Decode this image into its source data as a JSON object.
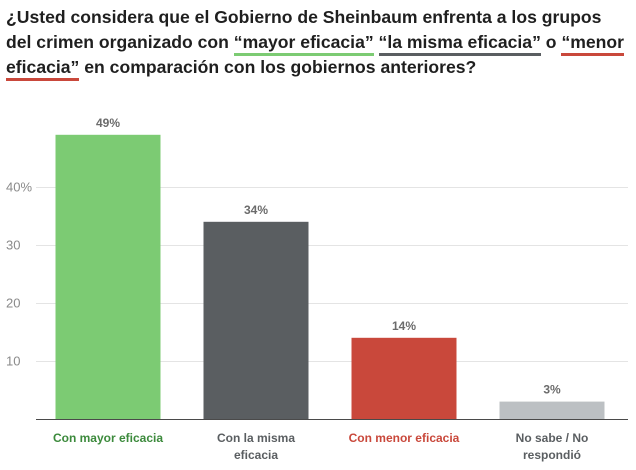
{
  "title": {
    "p1": "¿Usted considera que el Gobierno de Sheinbaum enfrenta a los grupos del crimen organizado con ",
    "h1": "“mayor eficacia”",
    "p2": " ",
    "h2": "“la misma eficacia”",
    "p3": " o ",
    "h3": "“menor eficacia”",
    "p4": " en comparación con los gobiernos anteriores?"
  },
  "colors": {
    "green": "#7ccb73",
    "gray": "#5a5e61",
    "red": "#c9483b",
    "light_gray": "#bcc0c3",
    "green_text": "#3c8a3c",
    "red_text": "#c9483b",
    "default_text": "#5a5e61"
  },
  "chart_data": {
    "type": "bar",
    "categories": [
      [
        "Con mayor eficacia"
      ],
      [
        "Con la misma",
        "eficacia"
      ],
      [
        "Con menor eficacia"
      ],
      [
        "No sabe / No",
        "respondió"
      ]
    ],
    "values": [
      49,
      34,
      14,
      3
    ],
    "value_labels": [
      "49%",
      "34%",
      "14%",
      "3%"
    ],
    "bar_colors": [
      "#7ccb73",
      "#5a5e61",
      "#c9483b",
      "#bcc0c3"
    ],
    "category_label_colors": [
      "#3c8a3c",
      "#5a5e61",
      "#c9483b",
      "#5a5e61"
    ],
    "y_ticks": [
      10,
      20,
      30,
      40
    ],
    "y_tick_labels": [
      "10",
      "20",
      "30",
      "40%"
    ],
    "ylim": [
      0,
      50
    ],
    "grid": true
  }
}
